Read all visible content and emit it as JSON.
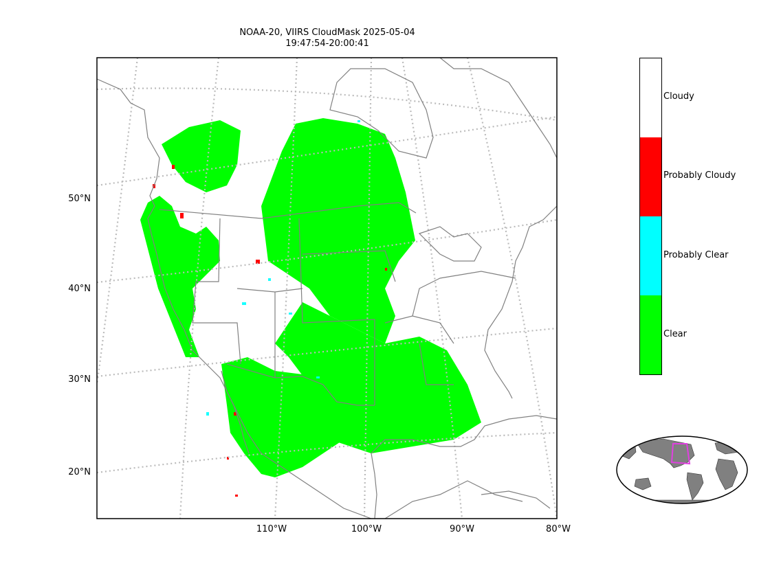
{
  "title": {
    "line1": "NOAA-20, VIIRS CloudMask 2025-05-04",
    "line2": "19:47:54-20:00:41"
  },
  "latitude_labels": [
    "50°N",
    "40°N",
    "30°N",
    "20°N"
  ],
  "longitude_labels": [
    "110°W",
    "100°W",
    "90°W",
    "80°W"
  ],
  "legend": {
    "categories": [
      {
        "label": "Cloudy",
        "color": "#ffffff"
      },
      {
        "label": "Probably Cloudy",
        "color": "#ff0000"
      },
      {
        "label": "Probably Clear",
        "color": "#00ffff"
      },
      {
        "label": "Clear",
        "color": "#00ff00"
      }
    ]
  },
  "colors": {
    "coastline": "#808080",
    "gridline": "#bbbbbb",
    "inset_land": "#808080",
    "inset_box": "#e040e0"
  }
}
